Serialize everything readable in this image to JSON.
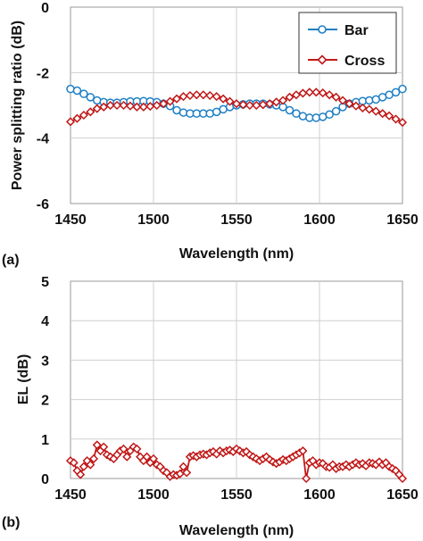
{
  "panels": [
    {
      "label": "(a)"
    },
    {
      "label": "(b)"
    }
  ],
  "chart_data": [
    {
      "type": "line",
      "panel": "(a)",
      "xlabel": "Wavelength (nm)",
      "ylabel": "Power splitting ratio (dB)",
      "xlim": [
        1450,
        1650
      ],
      "ylim": [
        -6,
        0
      ],
      "xticks": [
        1450,
        1500,
        1550,
        1600,
        1650
      ],
      "yticks": [
        -6,
        -4,
        -2,
        0
      ],
      "grid": true,
      "legend": "top-right",
      "series": [
        {
          "name": "Bar",
          "color": "#1f7fc4",
          "marker": "circle",
          "x": [
            1450,
            1454,
            1458,
            1462,
            1466,
            1470,
            1474,
            1478,
            1482,
            1486,
            1490,
            1494,
            1498,
            1502,
            1506,
            1510,
            1514,
            1518,
            1522,
            1526,
            1530,
            1534,
            1538,
            1542,
            1546,
            1550,
            1554,
            1558,
            1562,
            1566,
            1570,
            1574,
            1578,
            1582,
            1586,
            1590,
            1594,
            1598,
            1602,
            1606,
            1610,
            1614,
            1618,
            1622,
            1626,
            1630,
            1634,
            1638,
            1642,
            1646,
            1650
          ],
          "values": [
            -2.5,
            -2.55,
            -2.65,
            -2.75,
            -2.85,
            -2.9,
            -2.92,
            -2.92,
            -2.9,
            -2.88,
            -2.88,
            -2.87,
            -2.88,
            -2.9,
            -2.95,
            -3.02,
            -3.15,
            -3.22,
            -3.25,
            -3.25,
            -3.25,
            -3.25,
            -3.2,
            -3.12,
            -3.05,
            -3.0,
            -2.97,
            -2.95,
            -2.95,
            -2.95,
            -2.97,
            -3.0,
            -3.05,
            -3.15,
            -3.25,
            -3.33,
            -3.38,
            -3.38,
            -3.35,
            -3.28,
            -3.18,
            -3.05,
            -2.95,
            -2.9,
            -2.87,
            -2.85,
            -2.82,
            -2.75,
            -2.68,
            -2.6,
            -2.5
          ]
        },
        {
          "name": "Cross",
          "color": "#c01818",
          "marker": "diamond",
          "x": [
            1450,
            1454,
            1458,
            1462,
            1466,
            1470,
            1474,
            1478,
            1482,
            1486,
            1490,
            1494,
            1498,
            1502,
            1506,
            1510,
            1514,
            1518,
            1522,
            1526,
            1530,
            1534,
            1538,
            1542,
            1546,
            1550,
            1554,
            1558,
            1562,
            1566,
            1570,
            1574,
            1578,
            1582,
            1586,
            1590,
            1594,
            1598,
            1602,
            1606,
            1610,
            1614,
            1618,
            1622,
            1626,
            1630,
            1634,
            1638,
            1642,
            1646,
            1650
          ],
          "values": [
            -3.5,
            -3.4,
            -3.3,
            -3.2,
            -3.1,
            -3.05,
            -3.0,
            -3.0,
            -3.0,
            -3.02,
            -3.05,
            -3.05,
            -3.03,
            -3.0,
            -2.95,
            -2.88,
            -2.8,
            -2.73,
            -2.7,
            -2.68,
            -2.68,
            -2.7,
            -2.73,
            -2.8,
            -2.88,
            -2.95,
            -2.98,
            -3.0,
            -3.0,
            -2.98,
            -2.95,
            -2.9,
            -2.85,
            -2.75,
            -2.68,
            -2.63,
            -2.6,
            -2.6,
            -2.62,
            -2.68,
            -2.75,
            -2.85,
            -2.95,
            -3.02,
            -3.08,
            -3.12,
            -3.18,
            -3.25,
            -3.32,
            -3.42,
            -3.52
          ]
        }
      ]
    },
    {
      "type": "line",
      "panel": "(b)",
      "xlabel": "Wavelength (nm)",
      "ylabel": "EL (dB)",
      "xlim": [
        1450,
        1650
      ],
      "ylim": [
        0,
        5
      ],
      "xticks": [
        1450,
        1500,
        1550,
        1600,
        1650
      ],
      "yticks": [
        0,
        1,
        2,
        3,
        4,
        5
      ],
      "grid": true,
      "series": [
        {
          "color": "#c01818",
          "marker": "diamond",
          "x": [
            1450,
            1452,
            1454,
            1456,
            1458,
            1460,
            1462,
            1464,
            1466,
            1468,
            1470,
            1472,
            1474,
            1476,
            1478,
            1480,
            1482,
            1484,
            1486,
            1488,
            1490,
            1492,
            1494,
            1496,
            1498,
            1500,
            1502,
            1504,
            1506,
            1508,
            1510,
            1512,
            1514,
            1516,
            1518,
            1520,
            1522,
            1524,
            1526,
            1528,
            1530,
            1532,
            1534,
            1536,
            1538,
            1540,
            1542,
            1544,
            1546,
            1548,
            1550,
            1552,
            1554,
            1556,
            1558,
            1560,
            1562,
            1564,
            1566,
            1568,
            1570,
            1572,
            1574,
            1576,
            1578,
            1580,
            1582,
            1584,
            1586,
            1588,
            1590,
            1592,
            1594,
            1596,
            1598,
            1600,
            1602,
            1604,
            1606,
            1608,
            1610,
            1612,
            1614,
            1616,
            1618,
            1620,
            1622,
            1624,
            1626,
            1628,
            1630,
            1632,
            1634,
            1636,
            1638,
            1640,
            1642,
            1644,
            1646,
            1648,
            1650
          ],
          "values": [
            0.45,
            0.4,
            0.2,
            0.1,
            0.3,
            0.45,
            0.35,
            0.5,
            0.85,
            0.7,
            0.8,
            0.6,
            0.55,
            0.5,
            0.6,
            0.7,
            0.75,
            0.55,
            0.7,
            0.8,
            0.75,
            0.55,
            0.45,
            0.55,
            0.4,
            0.5,
            0.35,
            0.3,
            0.2,
            0.15,
            0.05,
            0.1,
            0.08,
            0.12,
            0.3,
            0.15,
            0.55,
            0.58,
            0.55,
            0.6,
            0.62,
            0.6,
            0.65,
            0.68,
            0.62,
            0.7,
            0.65,
            0.7,
            0.72,
            0.68,
            0.75,
            0.7,
            0.65,
            0.68,
            0.6,
            0.55,
            0.5,
            0.45,
            0.5,
            0.55,
            0.48,
            0.42,
            0.38,
            0.42,
            0.48,
            0.45,
            0.5,
            0.55,
            0.6,
            0.65,
            0.7,
            0.0,
            0.4,
            0.45,
            0.35,
            0.4,
            0.38,
            0.3,
            0.28,
            0.35,
            0.25,
            0.3,
            0.3,
            0.35,
            0.3,
            0.35,
            0.4,
            0.35,
            0.38,
            0.32,
            0.4,
            0.38,
            0.35,
            0.42,
            0.35,
            0.4,
            0.3,
            0.25,
            0.2,
            0.1,
            0.0
          ]
        }
      ]
    }
  ]
}
